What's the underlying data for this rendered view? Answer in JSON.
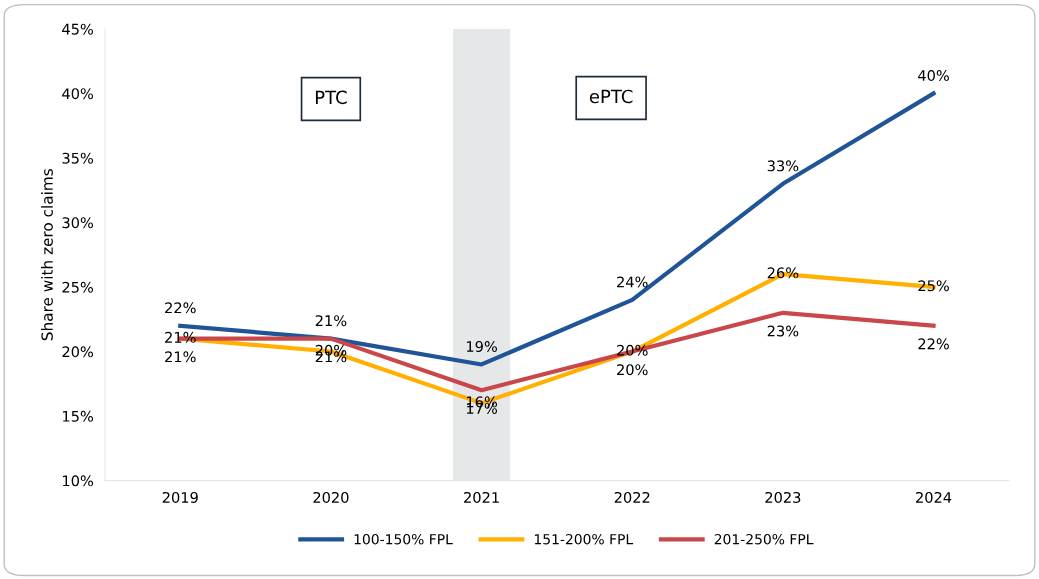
{
  "chart_data": {
    "type": "line",
    "ylabel": "Share with zero claims",
    "x": [
      2019,
      2020,
      2021,
      2022,
      2023,
      2024
    ],
    "xlim": [
      2018.5,
      2024.5
    ],
    "xticks": [
      2019,
      2020,
      2021,
      2022,
      2023,
      2024
    ],
    "ylim": [
      10,
      45
    ],
    "yticks": [
      {
        "value": 10,
        "label": "10%"
      },
      {
        "value": 15,
        "label": "15%"
      },
      {
        "value": 20,
        "label": "20%"
      },
      {
        "value": 25,
        "label": "25%"
      },
      {
        "value": 30,
        "label": "30%"
      },
      {
        "value": 35,
        "label": "35%"
      },
      {
        "value": 40,
        "label": "40%"
      },
      {
        "value": 45,
        "label": "45%"
      }
    ],
    "series": [
      {
        "name": "100-150% FPL",
        "color": "#1f5597",
        "values": [
          22,
          21,
          19,
          24,
          33,
          40
        ],
        "value_labels": [
          "22%",
          "21%",
          "19%",
          "24%",
          "33%",
          "40%"
        ]
      },
      {
        "name": "151-200% FPL",
        "color": "#ffb000",
        "values": [
          21,
          20,
          16,
          20,
          26,
          25
        ],
        "value_labels": [
          "21%",
          "20%",
          "16%",
          "20%",
          "26%",
          "25%"
        ]
      },
      {
        "name": "201-250% FPL",
        "color": "#c9474b",
        "values": [
          21,
          21,
          17,
          20,
          23,
          22
        ],
        "value_labels": [
          "21%",
          "21%",
          "17%",
          "20%",
          "23%",
          "22%"
        ]
      }
    ],
    "bands": [
      {
        "axis": "x",
        "from": 2020.81,
        "to": 2021.19,
        "color": "#e6e7e8"
      }
    ],
    "annotations": [
      "PTC",
      "ePTC"
    ],
    "grid": false,
    "legend": "bottom",
    "marker": "none",
    "line_style": "solid"
  }
}
